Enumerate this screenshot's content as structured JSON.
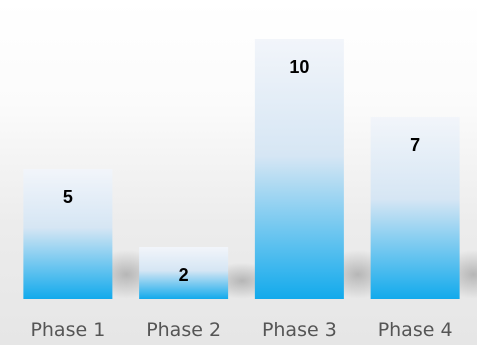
{
  "chart_data": {
    "type": "bar",
    "categories": [
      "Phase 1",
      "Phase 2",
      "Phase 3",
      "Phase 4"
    ],
    "values": [
      5,
      2,
      10,
      7
    ],
    "data_labels": [
      "5",
      "2",
      "10",
      "7"
    ],
    "title": "",
    "xlabel": "",
    "ylabel": "",
    "ylim": [
      0,
      10
    ],
    "grid": false,
    "legend": "none",
    "colors": {
      "bar_top": "#f2f5fa",
      "bar_bottom": "#12aaec",
      "label": "#000000",
      "category_text": "#555555"
    }
  }
}
